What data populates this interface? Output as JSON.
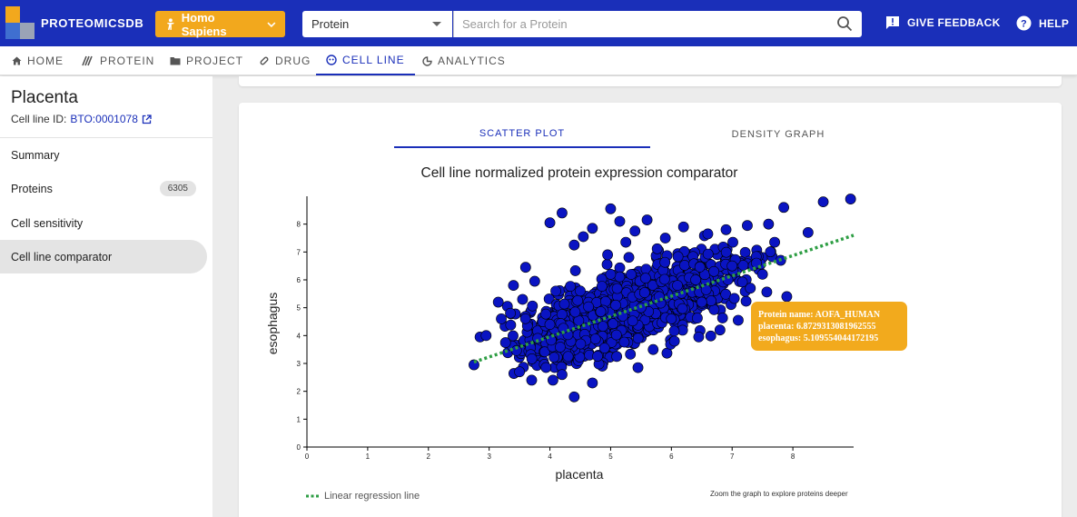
{
  "header": {
    "brand": "PROTEOMICSDB",
    "organism": "Homo Sapiens",
    "search_type": "Protein",
    "search_placeholder": "Search for a Protein",
    "feedback_label": "GIVE FEEDBACK",
    "help_label": "HELP",
    "colors": {
      "bar": "#1a2fb9",
      "accent": "#f2a81d"
    }
  },
  "nav": {
    "tabs": [
      {
        "label": "HOME",
        "icon": "home-icon"
      },
      {
        "label": "PROTEIN",
        "icon": "protein-icon"
      },
      {
        "label": "PROJECT",
        "icon": "folder-icon"
      },
      {
        "label": "DRUG",
        "icon": "pill-icon"
      },
      {
        "label": "CELL LINE",
        "icon": "cell-icon",
        "active": true
      },
      {
        "label": "ANALYTICS",
        "icon": "analytics-icon"
      }
    ]
  },
  "sidebar": {
    "title": "Placenta",
    "id_label": "Cell line ID:",
    "id_value": "BTO:0001078",
    "items": [
      {
        "label": "Summary"
      },
      {
        "label": "Proteins",
        "badge": "6305"
      },
      {
        "label": "Cell sensitivity"
      },
      {
        "label": "Cell line comparator",
        "active": true
      }
    ]
  },
  "content": {
    "tabs": [
      {
        "label": "SCATTER PLOT",
        "active": true
      },
      {
        "label": "DENSITY GRAPH"
      }
    ],
    "legend_label": "Linear regression line",
    "zoom_note": "Zoom the graph to explore proteins deeper",
    "tooltip": {
      "line1": "Protein name: AOFA_HUMAN",
      "line2": "placenta: 6.8729313081962555",
      "line3": "esophagus: 5.109554044172195"
    }
  },
  "chart_data": {
    "type": "scatter",
    "title": "Cell line normalized protein expression comparator",
    "xlabel": "placenta",
    "ylabel": "esophagus",
    "xlim": [
      0,
      9
    ],
    "ylim": [
      0,
      9
    ],
    "xticks": [
      0,
      1,
      2,
      3,
      4,
      5,
      6,
      7,
      8
    ],
    "yticks": [
      0,
      1,
      2,
      3,
      4,
      5,
      6,
      7,
      8
    ],
    "point_color": "#0a14c2",
    "regression_color": "#2e9e44",
    "regression": {
      "x": [
        2.75,
        9.0
      ],
      "y": [
        3.05,
        7.6
      ]
    },
    "points": [
      [
        2.75,
        2.95
      ],
      [
        2.85,
        3.95
      ],
      [
        2.95,
        4.0
      ],
      [
        3.15,
        5.2
      ],
      [
        3.2,
        4.6
      ],
      [
        3.3,
        5.05
      ],
      [
        3.35,
        4.8
      ],
      [
        3.4,
        5.8
      ],
      [
        3.55,
        5.3
      ],
      [
        3.6,
        6.45
      ],
      [
        3.75,
        5.95
      ],
      [
        3.5,
        2.7
      ],
      [
        3.7,
        2.4
      ],
      [
        4.05,
        2.4
      ],
      [
        4.2,
        2.6
      ],
      [
        4.4,
        1.8
      ],
      [
        4.7,
        2.3
      ],
      [
        5.1,
        3.25
      ],
      [
        5.45,
        2.85
      ],
      [
        4.0,
        8.05
      ],
      [
        4.2,
        8.4
      ],
      [
        4.4,
        7.25
      ],
      [
        4.55,
        7.55
      ],
      [
        4.7,
        7.85
      ],
      [
        4.95,
        6.9
      ],
      [
        5.0,
        8.55
      ],
      [
        5.15,
        8.1
      ],
      [
        5.25,
        7.35
      ],
      [
        5.4,
        7.75
      ],
      [
        5.6,
        8.15
      ],
      [
        5.9,
        7.5
      ],
      [
        6.2,
        7.9
      ],
      [
        6.6,
        7.65
      ],
      [
        6.9,
        7.8
      ],
      [
        7.25,
        7.95
      ],
      [
        7.4,
        6.6
      ],
      [
        7.6,
        8.0
      ],
      [
        7.7,
        7.35
      ],
      [
        7.8,
        6.7
      ],
      [
        7.85,
        8.6
      ],
      [
        7.9,
        5.4
      ],
      [
        8.25,
        7.7
      ],
      [
        8.5,
        8.8
      ],
      [
        8.95,
        8.9
      ],
      [
        6.05,
        3.8
      ],
      [
        6.45,
        3.95
      ],
      [
        6.8,
        4.2
      ],
      [
        7.1,
        4.55
      ],
      [
        5.7,
        3.5
      ],
      [
        4.9,
        3.55
      ],
      [
        4.3,
        3.25
      ],
      [
        5.2,
        4.7
      ],
      [
        5.5,
        5.0
      ],
      [
        5.8,
        5.4
      ],
      [
        6.1,
        5.8
      ],
      [
        6.4,
        6.0
      ],
      [
        6.7,
        6.3
      ],
      [
        7.0,
        6.5
      ],
      [
        5.0,
        6.2
      ],
      [
        4.5,
        5.6
      ],
      [
        6.0,
        4.6
      ],
      [
        6.5,
        5.2
      ],
      [
        7.3,
        5.7
      ],
      [
        7.5,
        6.2
      ],
      [
        4.0,
        4.4
      ],
      [
        3.8,
        3.9
      ]
    ],
    "cloud": {
      "count": 1200,
      "x_mean": 5.25,
      "x_sd": 0.95,
      "slope": 0.73,
      "y_at_x_mean": 4.95,
      "y_noise": 0.62,
      "x_range": [
        3.25,
        7.9
      ],
      "y_range": [
        2.5,
        7.8
      ]
    }
  }
}
